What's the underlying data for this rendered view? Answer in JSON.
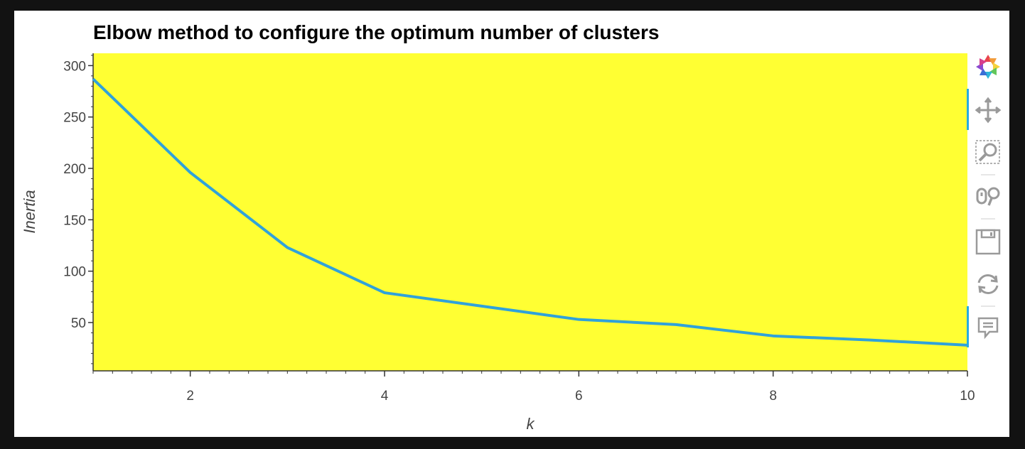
{
  "chart_data": {
    "type": "line",
    "title": "Elbow method to configure the optimum number of clusters",
    "xlabel": "k",
    "ylabel": "Inertia",
    "x": [
      1,
      2,
      3,
      4,
      5,
      6,
      7,
      8,
      9,
      10
    ],
    "series": [
      {
        "values": [
          287,
          196,
          123,
          79,
          66,
          53,
          48,
          37,
          33,
          28
        ]
      }
    ],
    "xlim": [
      1,
      10
    ],
    "ylim": [
      3,
      312
    ],
    "xticks": [
      2,
      4,
      6,
      8,
      10
    ],
    "yticks": [
      50,
      100,
      150,
      200,
      250,
      300
    ],
    "grid": false,
    "background_color": "#ffff33",
    "line_color": "#30a2da"
  },
  "toolbar": {
    "tools": [
      "bokeh-logo-icon",
      "pan-icon",
      "box-zoom-icon",
      "wheel-zoom-icon",
      "save-icon",
      "reset-icon",
      "hover-icon"
    ]
  }
}
